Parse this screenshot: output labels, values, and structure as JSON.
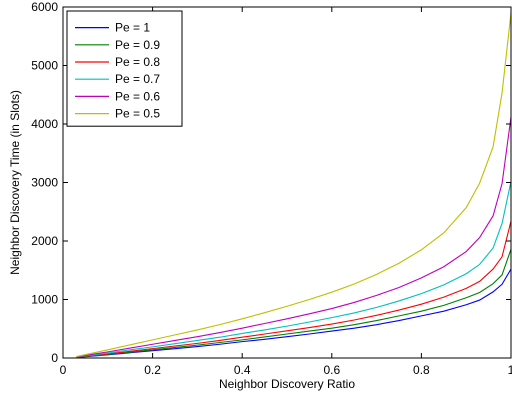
{
  "chart_data": {
    "type": "line",
    "title": "",
    "xlabel": "Neighbor Discovery Ratio",
    "ylabel": "Neighbor Discovery Time (in Slots)",
    "xlim": [
      0,
      1
    ],
    "ylim": [
      0,
      6000
    ],
    "xticks": [
      0,
      0.2,
      0.4,
      0.6,
      0.8,
      1
    ],
    "xtick_labels": [
      "0",
      "0.2",
      "0.4",
      "0.6",
      "0.8",
      "1"
    ],
    "yticks": [
      0,
      1000,
      2000,
      3000,
      4000,
      5000,
      6000
    ],
    "ytick_labels": [
      "0",
      "1000",
      "2000",
      "3000",
      "4000",
      "5000",
      "6000"
    ],
    "grid": false,
    "legend_position": "top-left",
    "x": [
      0.03,
      0.1,
      0.15,
      0.2,
      0.25,
      0.3,
      0.35,
      0.4,
      0.45,
      0.5,
      0.55,
      0.6,
      0.65,
      0.7,
      0.75,
      0.8,
      0.85,
      0.9,
      0.93,
      0.96,
      0.98,
      1.0
    ],
    "series": [
      {
        "name": "Pe = 1",
        "color": "#0000ff",
        "values": [
          10,
          55,
          90,
          125,
          160,
          195,
          235,
          280,
          320,
          365,
          410,
          460,
          510,
          570,
          640,
          720,
          800,
          910,
          990,
          1130,
          1260,
          1520
        ]
      },
      {
        "name": "Pe = 0.9",
        "color": "#008000",
        "values": [
          12,
          60,
          100,
          140,
          180,
          220,
          265,
          310,
          360,
          410,
          460,
          510,
          570,
          640,
          720,
          800,
          900,
          1030,
          1120,
          1270,
          1420,
          1860
        ]
      },
      {
        "name": "Pe = 0.8",
        "color": "#ff0000",
        "values": [
          15,
          70,
          115,
          160,
          205,
          250,
          300,
          355,
          410,
          465,
          520,
          580,
          650,
          730,
          820,
          920,
          1040,
          1190,
          1310,
          1520,
          1730,
          2340
        ]
      },
      {
        "name": "Pe = 0.7",
        "color": "#00bfbf",
        "values": [
          17,
          85,
          140,
          190,
          245,
          300,
          355,
          420,
          480,
          545,
          615,
          690,
          770,
          865,
          975,
          1100,
          1250,
          1440,
          1600,
          1880,
          2300,
          3020
        ]
      },
      {
        "name": "Pe = 0.6",
        "color": "#bf00bf",
        "values": [
          20,
          105,
          170,
          235,
          300,
          365,
          435,
          510,
          590,
          670,
          755,
          845,
          950,
          1070,
          1205,
          1370,
          1560,
          1820,
          2060,
          2430,
          2980,
          4120
        ]
      },
      {
        "name": "Pe = 0.5",
        "color": "#bfbf00",
        "values": [
          25,
          140,
          225,
          310,
          395,
          480,
          570,
          670,
          775,
          885,
          1000,
          1125,
          1265,
          1430,
          1620,
          1850,
          2140,
          2570,
          2990,
          3610,
          4530,
          5900
        ]
      }
    ]
  }
}
